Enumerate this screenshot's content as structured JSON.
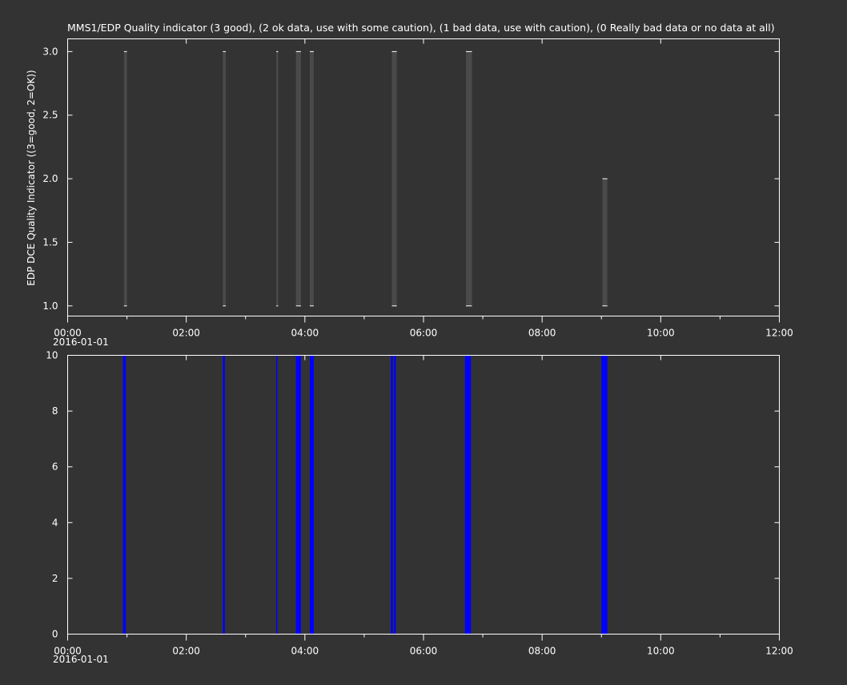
{
  "colors": {
    "background": "#333333",
    "axes": "#ffffff",
    "quality_bar": "#4a4a4a",
    "spike": "#0000ff"
  },
  "chart_data": [
    {
      "type": "bar",
      "title": "MMS1/EDP  Quality indicator (3 good), (2 ok data, use with some caution), (1 bad data, use with caution), (0 Really bad data or no data at all)",
      "ylabel": "EDP DCE Quality Indicator ((3=good, 2=OK))",
      "xlabel": "",
      "date_label": "2016-01-01",
      "xlim": [
        "00:00",
        "12:00"
      ],
      "ylim": [
        0.92,
        3.1
      ],
      "yticks": [
        "1.0",
        "1.5",
        "2.0",
        "2.5",
        "3.0"
      ],
      "xticks": [
        "00:00",
        "02:00",
        "04:00",
        "06:00",
        "08:00",
        "10:00",
        "12:00"
      ],
      "grid": false,
      "segments": [
        {
          "start": "00:57",
          "end": "01:00",
          "low": 1.0,
          "high": 3.0
        },
        {
          "start": "02:37",
          "end": "02:40",
          "low": 1.0,
          "high": 3.0
        },
        {
          "start": "03:31",
          "end": "03:33",
          "low": 1.0,
          "high": 3.0
        },
        {
          "start": "03:51",
          "end": "03:56",
          "low": 1.0,
          "high": 3.0
        },
        {
          "start": "04:05",
          "end": "04:09",
          "low": 1.0,
          "high": 3.0
        },
        {
          "start": "05:28",
          "end": "05:33",
          "low": 1.0,
          "high": 3.0
        },
        {
          "start": "06:43",
          "end": "06:49",
          "low": 1.0,
          "high": 3.0
        },
        {
          "start": "09:01",
          "end": "09:06",
          "low": 1.0,
          "high": 2.0
        }
      ]
    },
    {
      "type": "bar",
      "title": "",
      "ylabel": "",
      "xlabel": "",
      "date_label": "2016-01-01",
      "xlim": [
        "00:00",
        "12:00"
      ],
      "ylim": [
        0,
        10
      ],
      "yticks": [
        "0",
        "2",
        "4",
        "6",
        "8",
        "10"
      ],
      "xticks": [
        "00:00",
        "02:00",
        "04:00",
        "06:00",
        "08:00",
        "10:00",
        "12:00"
      ],
      "grid": false,
      "segments": [
        {
          "start": "00:56",
          "end": "00:59",
          "low": 0,
          "high": 10
        },
        {
          "start": "02:37",
          "end": "02:39",
          "low": 0,
          "high": 10
        },
        {
          "start": "03:31",
          "end": "03:32",
          "low": 0,
          "high": 10
        },
        {
          "start": "03:51",
          "end": "03:56",
          "low": 0,
          "high": 10
        },
        {
          "start": "04:05",
          "end": "04:09",
          "low": 0,
          "high": 10
        },
        {
          "start": "05:27",
          "end": "05:29",
          "low": 0,
          "high": 10
        },
        {
          "start": "05:30",
          "end": "05:32",
          "low": 0,
          "high": 10
        },
        {
          "start": "06:42",
          "end": "06:48",
          "low": 0,
          "high": 10
        },
        {
          "start": "09:00",
          "end": "09:06",
          "low": 0,
          "high": 10
        }
      ]
    }
  ]
}
